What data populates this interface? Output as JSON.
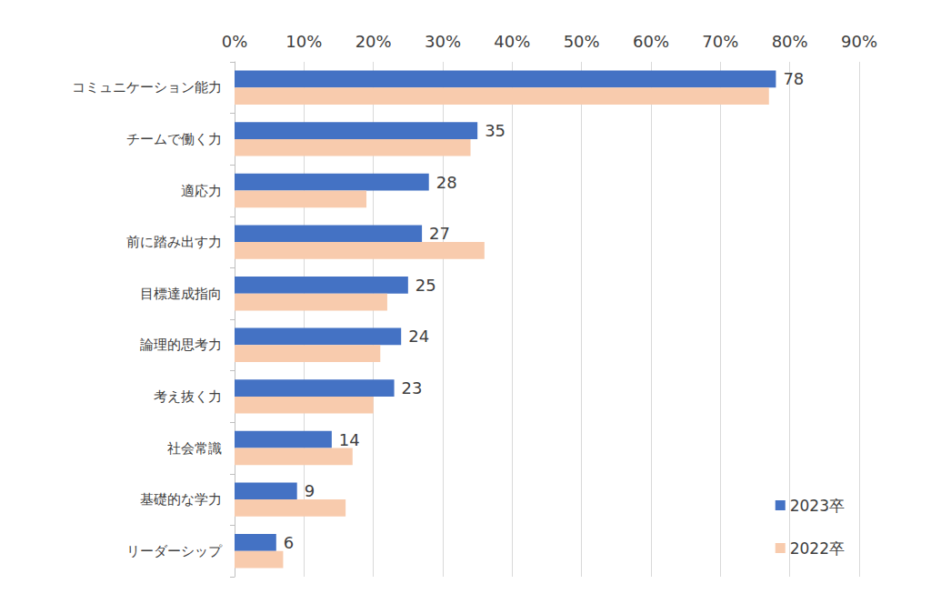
{
  "chart_data": {
    "type": "bar",
    "orientation": "horizontal",
    "categories": [
      "コミュニケーション能力",
      "チームで働く力",
      "適応力",
      "前に踏み出す力",
      "目標達成指向",
      "論理的思考力",
      "考え抜く力",
      "社会常識",
      "基礎的な学力",
      "リーダーシップ"
    ],
    "series": [
      {
        "name": "2023卒",
        "color": "#4472C4",
        "values": [
          78,
          35,
          28,
          27,
          25,
          24,
          23,
          14,
          9,
          6
        ],
        "data_labels": true
      },
      {
        "name": "2022卒",
        "color": "#F8CBAD",
        "values": [
          77,
          34,
          19,
          36,
          22,
          21,
          20,
          17,
          16,
          7
        ],
        "data_labels": false
      }
    ],
    "xlim": [
      0,
      90
    ],
    "xticks": [
      {
        "value": 0,
        "label": "0%"
      },
      {
        "value": 10,
        "label": "10%"
      },
      {
        "value": 20,
        "label": "20%"
      },
      {
        "value": 30,
        "label": "30%"
      },
      {
        "value": 40,
        "label": "40%"
      },
      {
        "value": 50,
        "label": "50%"
      },
      {
        "value": 60,
        "label": "60%"
      },
      {
        "value": 70,
        "label": "70%"
      },
      {
        "value": 80,
        "label": "80%"
      },
      {
        "value": 90,
        "label": "90%"
      }
    ],
    "grid": true,
    "legend": "lower right"
  }
}
